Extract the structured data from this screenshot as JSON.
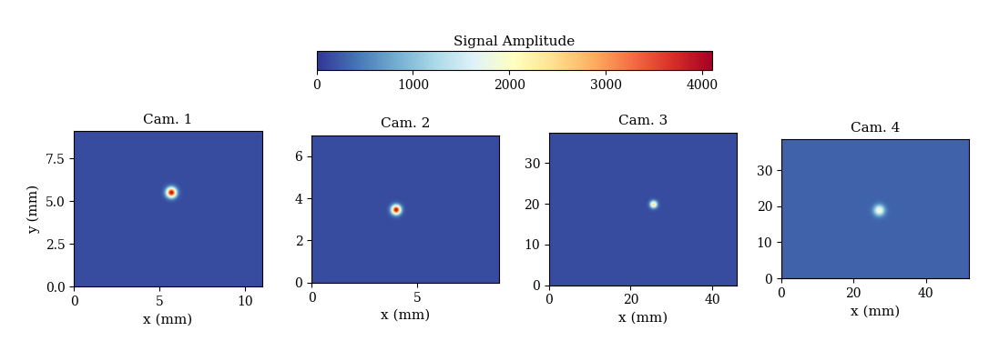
{
  "chart_data": [
    {
      "type": "heatmap",
      "title": "Cam. 1",
      "x_label": "x (mm)",
      "y_label": "y (mm)",
      "xlim": [
        0,
        11
      ],
      "ylim": [
        0,
        9.1
      ],
      "xticks": [
        0,
        5,
        10
      ],
      "yticks": [
        {
          "value": 0,
          "label": "0.0"
        },
        2.5,
        {
          "value": 5,
          "label": "5.0"
        },
        7.5
      ],
      "background": 150,
      "spot": {
        "x": 5.7,
        "y": 5.5,
        "peak": 4000,
        "sigma": 0.2
      }
    },
    {
      "type": "heatmap",
      "title": "Cam. 2",
      "x_label": "x (mm)",
      "xlim": [
        0,
        8.9
      ],
      "ylim": [
        0,
        7
      ],
      "xticks": [
        0,
        5
      ],
      "yticks": [
        0,
        2,
        4,
        6
      ],
      "background": 150,
      "spot": {
        "x": 4.0,
        "y": 3.45,
        "peak": 4000,
        "sigma": 0.15
      }
    },
    {
      "type": "heatmap",
      "title": "Cam. 3",
      "x_label": "x (mm)",
      "xlim": [
        0,
        46
      ],
      "ylim": [
        0,
        37.5
      ],
      "xticks": [
        0,
        20,
        40
      ],
      "yticks": [
        0,
        10,
        20,
        30
      ],
      "background": 150,
      "spot": {
        "x": 25.5,
        "y": 19.8,
        "peak": 2500,
        "sigma": 0.6
      }
    },
    {
      "type": "heatmap",
      "title": "Cam. 4",
      "x_label": "x (mm)",
      "xlim": [
        0,
        52
      ],
      "ylim": [
        0,
        38.5
      ],
      "xticks": [
        0,
        20,
        40
      ],
      "yticks": [
        0,
        10,
        20,
        30
      ],
      "background": 300,
      "spot": {
        "x": 27,
        "y": 18.8,
        "peak": 2000,
        "sigma": 1.0
      }
    }
  ],
  "colorbar": {
    "label": "Signal Amplitude",
    "range": [
      0,
      4100
    ],
    "ticks": [
      0,
      1000,
      2000,
      3000,
      4000
    ]
  }
}
